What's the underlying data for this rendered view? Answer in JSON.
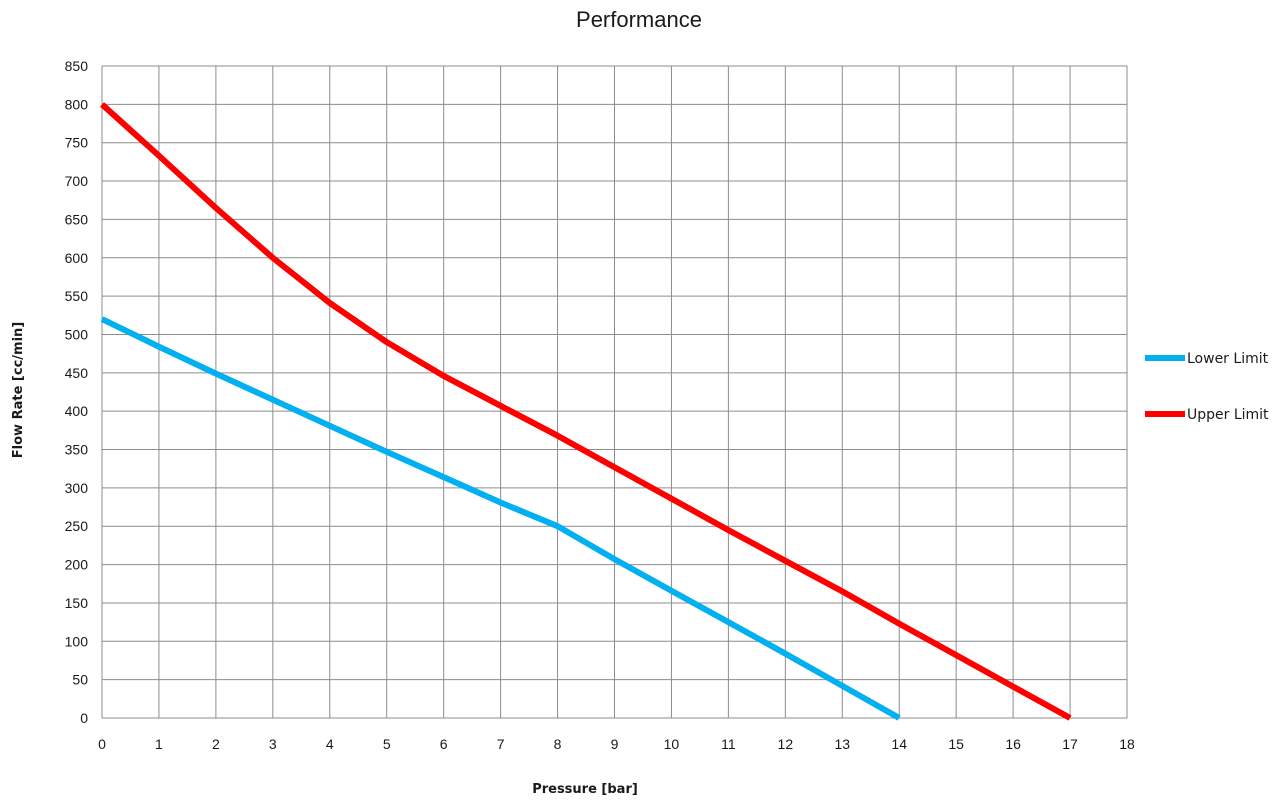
{
  "chart_data": {
    "type": "line",
    "title": "Performance",
    "xlabel": "Pressure [bar]",
    "ylabel": "Flow Rate [cc/min]",
    "xlim": [
      0,
      18
    ],
    "ylim": [
      0,
      850
    ],
    "xticks": [
      "0",
      "1",
      "2",
      "3",
      "4",
      "5",
      "6",
      "7",
      "8",
      "9",
      "10",
      "11",
      "12",
      "13",
      "14",
      "15",
      "16",
      "17",
      "18"
    ],
    "yticks": [
      "0",
      "50",
      "100",
      "150",
      "200",
      "250",
      "300",
      "350",
      "400",
      "450",
      "500",
      "550",
      "600",
      "650",
      "700",
      "750",
      "800",
      "850"
    ],
    "x_step": 1,
    "y_step": 50,
    "grid": true,
    "legend_position": "right",
    "series": [
      {
        "name": "Lower Limit",
        "color": "#00b0f0",
        "points": [
          [
            0,
            520
          ],
          [
            1,
            484
          ],
          [
            2,
            449
          ],
          [
            3,
            415
          ],
          [
            4,
            381
          ],
          [
            5,
            347
          ],
          [
            6,
            314
          ],
          [
            7,
            281
          ],
          [
            8,
            250
          ],
          [
            9,
            207
          ],
          [
            10,
            166
          ],
          [
            11,
            125
          ],
          [
            12,
            84
          ],
          [
            13,
            42
          ],
          [
            14,
            0
          ]
        ]
      },
      {
        "name": "Upper Limit",
        "color": "#ff0000",
        "points": [
          [
            0,
            800
          ],
          [
            1,
            733
          ],
          [
            2,
            665
          ],
          [
            3,
            600
          ],
          [
            4,
            541
          ],
          [
            5,
            490
          ],
          [
            6,
            446
          ],
          [
            7,
            407
          ],
          [
            8,
            368
          ],
          [
            9,
            327
          ],
          [
            10,
            286
          ],
          [
            11,
            245
          ],
          [
            12,
            205
          ],
          [
            13,
            165
          ],
          [
            14,
            123
          ],
          [
            15,
            82
          ],
          [
            16,
            41
          ],
          [
            17,
            0
          ]
        ]
      }
    ]
  }
}
